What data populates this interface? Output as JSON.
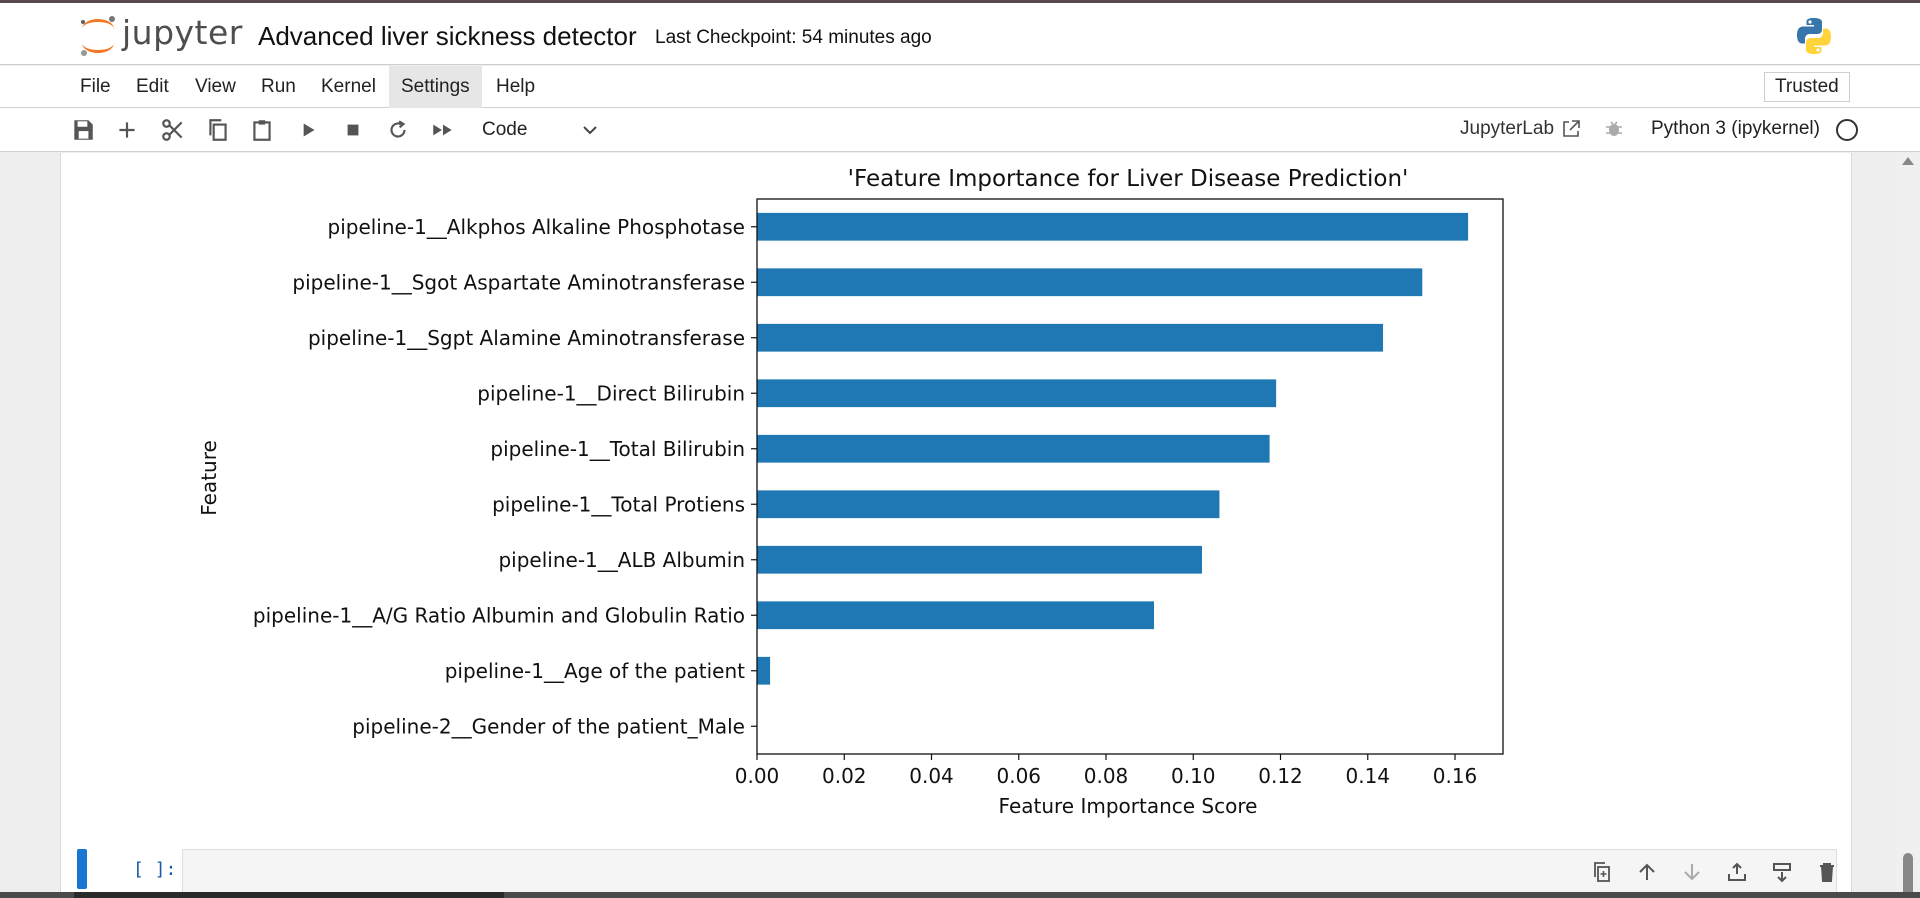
{
  "header": {
    "logo_text": "jupyter",
    "notebook_title": "Advanced liver sickness detector",
    "checkpoint": "Last Checkpoint: 54 minutes ago"
  },
  "menu": {
    "items": [
      "File",
      "Edit",
      "View",
      "Run",
      "Kernel",
      "Settings",
      "Help"
    ],
    "active": "Settings",
    "trusted_label": "Trusted"
  },
  "toolbar": {
    "cell_type": "Code",
    "jupyterlab_label": "JupyterLab",
    "kernel_name": "Python 3 (ipykernel)"
  },
  "cell": {
    "prompt": "[ ]:"
  },
  "colors": {
    "bar": "#1f77b4",
    "accent": "#1976d2",
    "jupyter_orange": "#f37726"
  },
  "chart_data": {
    "type": "bar",
    "orientation": "horizontal",
    "title": "'Feature Importance for Liver Disease Prediction'",
    "xlabel": "Feature Importance Score",
    "ylabel": "Feature",
    "xlim": [
      0,
      0.171
    ],
    "xticks": [
      "0.00",
      "0.02",
      "0.04",
      "0.06",
      "0.08",
      "0.10",
      "0.12",
      "0.14",
      "0.16"
    ],
    "grid": false,
    "categories": [
      "pipeline-1__Alkphos Alkaline Phosphotase",
      "pipeline-1__Sgot Aspartate Aminotransferase",
      "pipeline-1__Sgpt Alamine Aminotransferase",
      "pipeline-1__Direct Bilirubin",
      "pipeline-1__Total Bilirubin",
      "pipeline-1__Total Protiens",
      "pipeline-1__ALB Albumin",
      "pipeline-1__A/G Ratio Albumin and Globulin Ratio",
      "pipeline-1__Age of the patient",
      "pipeline-2__Gender of the patient_Male"
    ],
    "values": [
      0.163,
      0.1525,
      0.1435,
      0.119,
      0.1175,
      0.106,
      0.102,
      0.091,
      0.003,
      0.0
    ]
  }
}
